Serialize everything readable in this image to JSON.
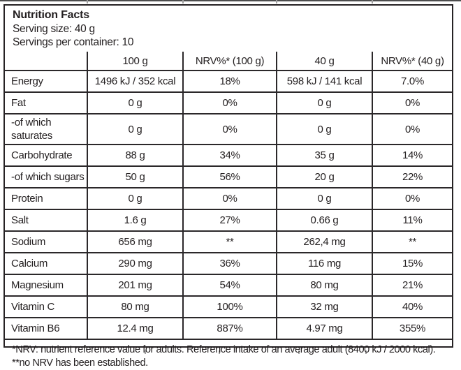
{
  "palette": {
    "text": "#231f20",
    "border": "#2b282a"
  },
  "header": {
    "title": "Nutrition Facts",
    "serving_size": "Serving size: 40 g",
    "servings_per_container": "Servings per container: 10"
  },
  "table": {
    "columns": [
      "",
      "100 g",
      "NRV%* (100 g)",
      "40 g",
      "NRV%* (40 g)"
    ],
    "rows": [
      [
        "Energy",
        "1496 kJ / 352 kcal",
        "18%",
        "598 kJ / 141 kcal",
        "7.0%"
      ],
      [
        "Fat",
        "0 g",
        "0%",
        "0 g",
        "0%"
      ],
      [
        "-of which saturates",
        "0 g",
        "0%",
        "0 g",
        "0%"
      ],
      [
        "Carbohydrate",
        "88 g",
        "34%",
        "35 g",
        "14%"
      ],
      [
        "-of which sugars",
        "50 g",
        "56%",
        "20 g",
        "22%"
      ],
      [
        "Protein",
        "0 g",
        "0%",
        "0 g",
        "0%"
      ],
      [
        "Salt",
        "1.6 g",
        "27%",
        "0.66 g",
        "11%"
      ],
      [
        "Sodium",
        "656 mg",
        "**",
        "262,4 mg",
        "**"
      ],
      [
        "Calcium",
        "290 mg",
        "36%",
        "116 mg",
        "15%"
      ],
      [
        "Magnesium",
        "201 mg",
        "54%",
        "80 mg",
        "21%"
      ],
      [
        "Vitamin C",
        "80 mg",
        "100%",
        "32 mg",
        "40%"
      ],
      [
        "Vitamin B6",
        "12.4 mg",
        "887%",
        "4.97 mg",
        "355%"
      ]
    ]
  },
  "footnote": "*NRV: nutrient reference value for adults. Reference intake of an average adult (8400 kJ / 2000 kcal). **no NRV has been established."
}
